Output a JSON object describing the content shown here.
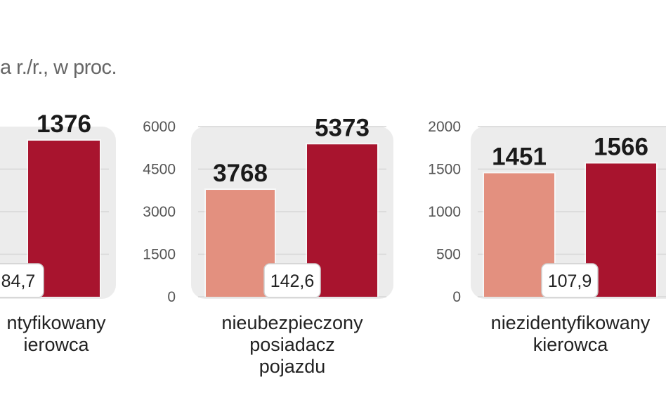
{
  "subtitle": "a r./r., w proc.",
  "colors": {
    "bar_prev": "#e3907f",
    "bar_curr": "#a8142e",
    "panel_bg": "#ececec"
  },
  "chart_data": [
    {
      "type": "bar",
      "category_label": [
        "ntyfikowany",
        "ierowca"
      ],
      "values": [
        null,
        1376
      ],
      "value_labels": [
        "",
        "1376"
      ],
      "change_label": "84,7",
      "yticks": [],
      "ylim": [
        0,
        1500
      ]
    },
    {
      "type": "bar",
      "category_label": [
        "nieubezpieczony",
        "posiadacz",
        "pojazdu"
      ],
      "values": [
        3768,
        5373
      ],
      "value_labels": [
        "3768",
        "5373"
      ],
      "change_label": "142,6",
      "yticks": [
        "0",
        "1500",
        "3000",
        "4500",
        "6000"
      ],
      "ylim": [
        0,
        6000
      ]
    },
    {
      "type": "bar",
      "category_label": [
        "niezidentyfikowany",
        "kierowca"
      ],
      "values": [
        1451,
        1566
      ],
      "value_labels": [
        "1451",
        "1566"
      ],
      "change_label": "107,9",
      "yticks": [
        "0",
        "500",
        "1000",
        "1500",
        "2000"
      ],
      "ylim": [
        0,
        2000
      ]
    }
  ]
}
